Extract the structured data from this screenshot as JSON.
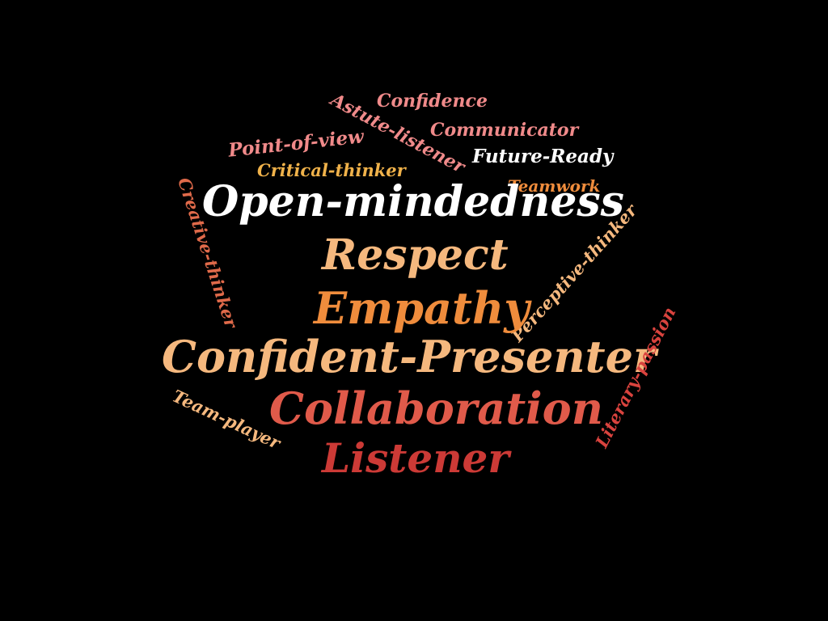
{
  "background_color": "#000000",
  "words": [
    {
      "id": "confidence",
      "text": "Confidence",
      "color": "#f08a8a"
    },
    {
      "id": "astute",
      "text": "Astute-listener",
      "color": "#f08a8a"
    },
    {
      "id": "communicator",
      "text": "Communicator",
      "color": "#f08a8a"
    },
    {
      "id": "pov",
      "text": "Point-of-view",
      "color": "#f08a8a"
    },
    {
      "id": "future",
      "text": "Future-Ready",
      "color": "#ffffff"
    },
    {
      "id": "critical",
      "text": "Critical-thinker",
      "color": "#f0b24a"
    },
    {
      "id": "teamwork",
      "text": "Teamwork",
      "color": "#ef8c3c"
    },
    {
      "id": "creative",
      "text": "Creative-thinker",
      "color": "#e06a4a"
    },
    {
      "id": "openminded",
      "text": "Open-mindedness",
      "color": "#ffffff"
    },
    {
      "id": "respect",
      "text": "Respect",
      "color": "#f5b87e"
    },
    {
      "id": "perceptive",
      "text": "Perceptive-thinker",
      "color": "#f5b87e"
    },
    {
      "id": "empathy",
      "text": "Empathy",
      "color": "#ef8c3c"
    },
    {
      "id": "confpres",
      "text": "Confident-Presenter",
      "color": "#f5b87e"
    },
    {
      "id": "literary",
      "text": "Literary-passion",
      "color": "#d9433e"
    },
    {
      "id": "teamplayer",
      "text": "Team-player",
      "color": "#f5b87e"
    },
    {
      "id": "collab",
      "text": "Collaboration",
      "color": "#e05a4a"
    },
    {
      "id": "listener",
      "text": "Listener",
      "color": "#cc3a36"
    }
  ]
}
